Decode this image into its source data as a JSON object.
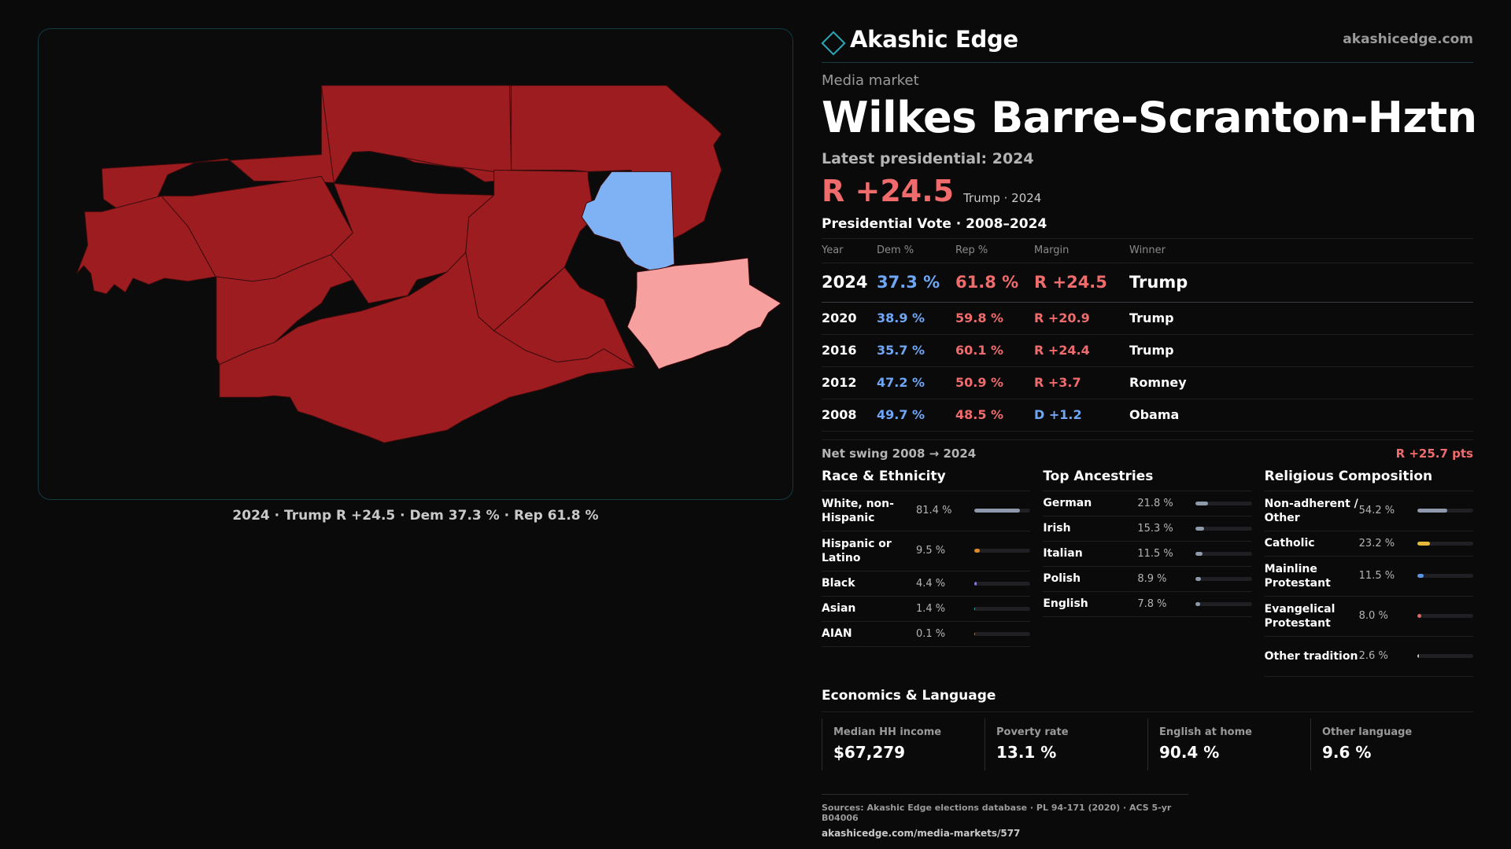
{
  "brand": {
    "name": "Akashic Edge",
    "site": "akashicedge.com"
  },
  "map": {
    "caption": "2024 · Trump R +24.5 · Dem 37.3 % · Rep 61.8 %",
    "colors": {
      "strong_r": "#9c1c20",
      "lean_d": "#7fb2f5",
      "lean_r": "#f7a0a0"
    }
  },
  "market": {
    "kicker": "Media market",
    "name": "Wilkes Barre-Scranton-Hztn",
    "latest_label": "Latest presidential: 2024",
    "margin": "R +24.5",
    "winner_year": "Trump · 2024"
  },
  "presidential": {
    "title": "Presidential Vote · 2008–2024",
    "columns": [
      "Year",
      "Dem %",
      "Rep %",
      "Margin",
      "Winner"
    ],
    "rows": [
      {
        "year": "2024",
        "dem": "37.3 %",
        "rep": "61.8 %",
        "margin": "R +24.5",
        "winner": "Trump"
      },
      {
        "year": "2020",
        "dem": "38.9 %",
        "rep": "59.8 %",
        "margin": "R +20.9",
        "winner": "Trump"
      },
      {
        "year": "2016",
        "dem": "35.7 %",
        "rep": "60.1 %",
        "margin": "R +24.4",
        "winner": "Trump"
      },
      {
        "year": "2012",
        "dem": "47.2 %",
        "rep": "50.9 %",
        "margin": "R +3.7",
        "winner": "Romney"
      },
      {
        "year": "2008",
        "dem": "49.7 %",
        "rep": "48.5 %",
        "margin": "D +1.2",
        "winner": "Obama"
      }
    ],
    "swing_label": "Net swing 2008 → 2024",
    "swing_value": "R +25.7 pts"
  },
  "race": {
    "title": "Race & Ethnicity",
    "items": [
      {
        "label": "White, non-Hispanic",
        "pct": "81.4 %",
        "value": 81.4,
        "color": "#8e9aab"
      },
      {
        "label": "Hispanic or Latino",
        "pct": "9.5 %",
        "value": 9.5,
        "color": "#d98a2b"
      },
      {
        "label": "Black",
        "pct": "4.4 %",
        "value": 4.4,
        "color": "#8a7ad6"
      },
      {
        "label": "Asian",
        "pct": "1.4 %",
        "value": 1.4,
        "color": "#3fb6a8"
      },
      {
        "label": "AIAN",
        "pct": "0.1 %",
        "value": 0.1,
        "color": "#b07a4a"
      }
    ]
  },
  "ancestry": {
    "title": "Top Ancestries",
    "items": [
      {
        "label": "German",
        "pct": "21.8 %",
        "value": 21.8,
        "color": "#8e9aab"
      },
      {
        "label": "Irish",
        "pct": "15.3 %",
        "value": 15.3,
        "color": "#8e9aab"
      },
      {
        "label": "Italian",
        "pct": "11.5 %",
        "value": 11.5,
        "color": "#8e9aab"
      },
      {
        "label": "Polish",
        "pct": "8.9 %",
        "value": 8.9,
        "color": "#8e9aab"
      },
      {
        "label": "English",
        "pct": "7.8 %",
        "value": 7.8,
        "color": "#8e9aab"
      }
    ]
  },
  "religion": {
    "title": "Religious Composition",
    "items": [
      {
        "label": "Non-adherent / Other",
        "pct": "54.2 %",
        "value": 54.2,
        "color": "#8e9aab"
      },
      {
        "label": "Catholic",
        "pct": "23.2 %",
        "value": 23.2,
        "color": "#e5b93a"
      },
      {
        "label": "Mainline Protestant",
        "pct": "11.5 %",
        "value": 11.5,
        "color": "#5b93e0"
      },
      {
        "label": "Evangelical Protestant",
        "pct": "8.0 %",
        "value": 8.0,
        "color": "#e06565"
      },
      {
        "label": "Other tradition",
        "pct": "2.6 %",
        "value": 2.6,
        "color": "#c9c9c9"
      }
    ]
  },
  "economics": {
    "title": "Economics & Language",
    "cards": [
      {
        "label": "Median HH income",
        "value": "$67,279"
      },
      {
        "label": "Poverty rate",
        "value": "13.1 %"
      },
      {
        "label": "English at home",
        "value": "90.4 %"
      },
      {
        "label": "Other language",
        "value": "9.6 %"
      }
    ]
  },
  "sources": {
    "line1": "Sources: Akashic Edge elections database · PL 94-171 (2020) · ACS 5-yr B04006",
    "line2": "akashicedge.com/media-markets/577"
  }
}
